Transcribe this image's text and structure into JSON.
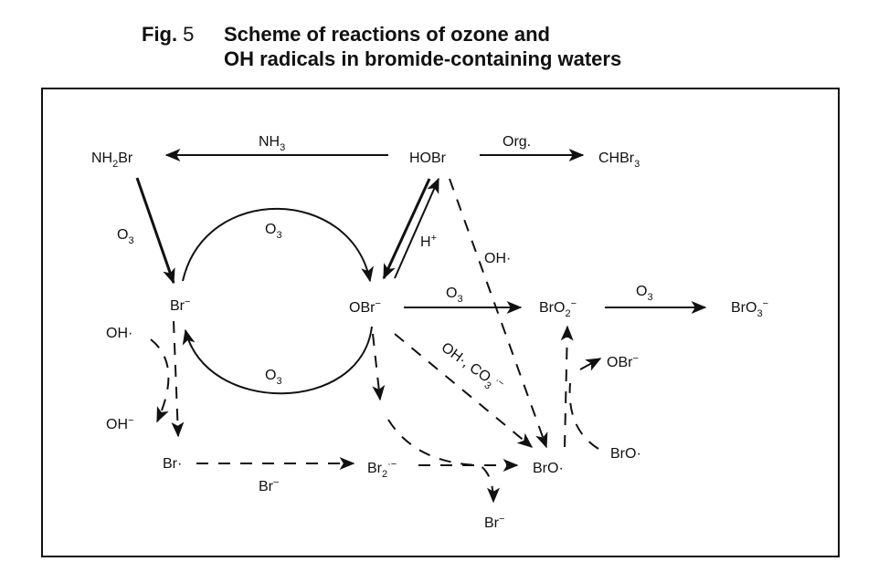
{
  "figure": {
    "number_label": "Fig.",
    "number": "5",
    "title_line1": "Scheme of reactions of ozone and",
    "title_line2": "OH radicals in bromide-containing waters"
  },
  "species": {
    "nh2br": [
      {
        "t": "NH"
      },
      {
        "t": "2",
        "s": "sub"
      },
      {
        "t": "Br"
      }
    ],
    "hobr": [
      {
        "t": "HOBr"
      }
    ],
    "chbr3": [
      {
        "t": "CHBr"
      },
      {
        "t": "3",
        "s": "sub"
      }
    ],
    "br_minus": [
      {
        "t": "Br"
      },
      {
        "t": "−",
        "s": "sup"
      }
    ],
    "obr_minus": [
      {
        "t": "OBr"
      },
      {
        "t": "−",
        "s": "sup"
      }
    ],
    "bro2_minus": [
      {
        "t": "BrO"
      },
      {
        "t": "2",
        "s": "sub"
      },
      {
        "t": "−",
        "s": "sup"
      }
    ],
    "bro3_minus": [
      {
        "t": "BrO"
      },
      {
        "t": "3",
        "s": "sub"
      },
      {
        "t": "−",
        "s": "sup"
      }
    ],
    "br_radical": [
      {
        "t": "Br·"
      }
    ],
    "br2_radical_anion": [
      {
        "t": "Br"
      },
      {
        "t": "2",
        "s": "sub"
      },
      {
        "t": "·−",
        "s": "sup"
      }
    ],
    "bro_radical": [
      {
        "t": "BrO·"
      }
    ],
    "bro_radical_2": [
      {
        "t": "BrO·"
      }
    ],
    "obr_minus_2": [
      {
        "t": "OBr"
      },
      {
        "t": "−",
        "s": "sup"
      }
    ],
    "br_minus_product": [
      {
        "t": "Br"
      },
      {
        "t": "−",
        "s": "sup"
      }
    ],
    "oh_minus": [
      {
        "t": "OH"
      },
      {
        "t": "−",
        "s": "sup"
      }
    ]
  },
  "reagents": {
    "nh3": [
      {
        "t": "NH"
      },
      {
        "t": "3",
        "s": "sub"
      }
    ],
    "org": [
      {
        "t": "Org."
      }
    ],
    "o3_nh2br": [
      {
        "t": "O"
      },
      {
        "t": "3",
        "s": "sub"
      }
    ],
    "o3_arc_top": [
      {
        "t": "O"
      },
      {
        "t": "3",
        "s": "sub"
      }
    ],
    "o3_arc_bottom": [
      {
        "t": "O"
      },
      {
        "t": "3",
        "s": "sub"
      }
    ],
    "h_plus": [
      {
        "t": "H"
      },
      {
        "t": "+",
        "s": "sup"
      }
    ],
    "oh_radical_hobr": [
      {
        "t": "OH·"
      }
    ],
    "o3_obr": [
      {
        "t": "O"
      },
      {
        "t": "3",
        "s": "sub"
      }
    ],
    "o3_bro2": [
      {
        "t": "O"
      },
      {
        "t": "3",
        "s": "sub"
      }
    ],
    "oh_radical_br": [
      {
        "t": "OH·"
      }
    ],
    "oh_co3": [
      {
        "t": "OH·, CO"
      },
      {
        "t": "3",
        "s": "sub"
      },
      {
        "t": "·−",
        "s": "sup"
      }
    ],
    "br_minus_reagent": [
      {
        "t": "Br"
      },
      {
        "t": "−",
        "s": "sup"
      }
    ]
  }
}
